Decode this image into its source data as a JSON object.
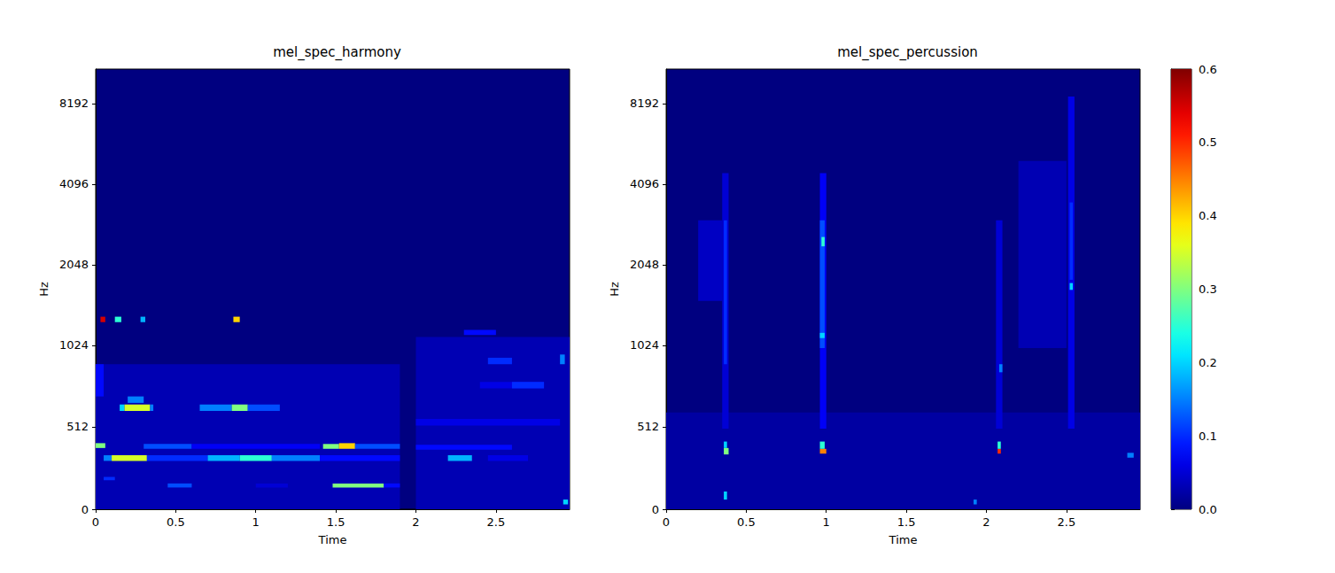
{
  "chart_data": [
    {
      "type": "heatmap",
      "title": "mel_spec_harmony",
      "x_label": "Time",
      "y_label": "Hz",
      "xlim": [
        0,
        2.96
      ],
      "xticks": [
        0,
        0.5,
        1,
        1.5,
        2,
        2.5
      ],
      "ylim": [
        0,
        11025
      ],
      "yticks": [
        0,
        512,
        1024,
        2048,
        4096,
        8192
      ],
      "log": "y",
      "cells": [
        [
          0,
          1.9,
          0,
          900,
          0.03
        ],
        [
          2.0,
          2.96,
          0,
          1100,
          0.03
        ],
        [
          0,
          0.05,
          700,
          900,
          0.08
        ],
        [
          0.05,
          0.1,
          300,
          335,
          0.15
        ],
        [
          0.1,
          0.32,
          300,
          335,
          0.35
        ],
        [
          0.32,
          0.7,
          300,
          335,
          0.1
        ],
        [
          0.7,
          0.9,
          300,
          335,
          0.18
        ],
        [
          0.9,
          1.1,
          300,
          335,
          0.25
        ],
        [
          1.1,
          1.4,
          300,
          335,
          0.15
        ],
        [
          1.4,
          1.9,
          300,
          335,
          0.08
        ],
        [
          2.2,
          2.35,
          300,
          335,
          0.18
        ],
        [
          2.45,
          2.7,
          300,
          335,
          0.06
        ],
        [
          0,
          0.06,
          380,
          410,
          0.3
        ],
        [
          0.3,
          0.6,
          375,
          405,
          0.12
        ],
        [
          0.6,
          1.4,
          375,
          405,
          0.07
        ],
        [
          1.42,
          1.52,
          375,
          405,
          0.3
        ],
        [
          1.52,
          1.62,
          375,
          410,
          0.4
        ],
        [
          1.62,
          1.9,
          375,
          405,
          0.12
        ],
        [
          2.0,
          2.6,
          370,
          400,
          0.08
        ],
        [
          0.05,
          0.12,
          180,
          200,
          0.1
        ],
        [
          0.45,
          0.6,
          135,
          160,
          0.12
        ],
        [
          1.0,
          1.2,
          135,
          160,
          0.05
        ],
        [
          1.48,
          1.8,
          135,
          160,
          0.3
        ],
        [
          1.8,
          1.9,
          135,
          160,
          0.08
        ],
        [
          0.15,
          0.18,
          610,
          650,
          0.2
        ],
        [
          0.18,
          0.34,
          610,
          650,
          0.35
        ],
        [
          0.34,
          0.36,
          610,
          650,
          0.15
        ],
        [
          0.2,
          0.3,
          660,
          700,
          0.15
        ],
        [
          0.65,
          0.85,
          610,
          650,
          0.15
        ],
        [
          0.85,
          0.95,
          610,
          650,
          0.3
        ],
        [
          0.95,
          1.15,
          610,
          650,
          0.12
        ],
        [
          0.03,
          0.06,
          1250,
          1310,
          0.55
        ],
        [
          0.12,
          0.16,
          1250,
          1310,
          0.25
        ],
        [
          0.28,
          0.31,
          1250,
          1310,
          0.18
        ],
        [
          0.86,
          0.9,
          1250,
          1310,
          0.4
        ],
        [
          2.0,
          2.9,
          520,
          560,
          0.06
        ],
        [
          2.4,
          2.8,
          750,
          790,
          0.06
        ],
        [
          2.6,
          2.8,
          750,
          790,
          0.1
        ],
        [
          2.45,
          2.6,
          900,
          940,
          0.1
        ],
        [
          2.3,
          2.5,
          1120,
          1170,
          0.08
        ],
        [
          2.9,
          2.93,
          900,
          960,
          0.15
        ],
        [
          2.92,
          2.95,
          30,
          60,
          0.2
        ]
      ]
    },
    {
      "type": "heatmap",
      "title": "mel_spec_percussion",
      "x_label": "Time",
      "y_label": "Hz",
      "xlim": [
        0,
        2.96
      ],
      "xticks": [
        0,
        0.5,
        1,
        1.5,
        2,
        2.5
      ],
      "ylim": [
        0,
        11025
      ],
      "yticks": [
        0,
        512,
        1024,
        2048,
        4096,
        8192
      ],
      "log": "y",
      "colorbar_range": [
        0,
        0.6
      ],
      "colorbar_ticks": [
        {
          "value": 0,
          "label": "0.0"
        },
        0.1,
        0.2,
        0.3,
        0.4,
        0.5,
        0.6
      ],
      "cells": [
        [
          0,
          2.96,
          0,
          600,
          0.02
        ],
        [
          0.35,
          0.39,
          500,
          4500,
          0.05
        ],
        [
          0.36,
          0.38,
          900,
          3000,
          0.1
        ],
        [
          0.36,
          0.39,
          340,
          380,
          0.3
        ],
        [
          0.36,
          0.38,
          380,
          420,
          0.2
        ],
        [
          0.36,
          0.38,
          60,
          110,
          0.2
        ],
        [
          0.2,
          0.35,
          1500,
          3000,
          0.04
        ],
        [
          0.96,
          1.0,
          500,
          4500,
          0.07
        ],
        [
          0.96,
          0.99,
          1000,
          3000,
          0.12
        ],
        [
          0.97,
          0.99,
          2400,
          2600,
          0.25
        ],
        [
          0.96,
          0.99,
          1090,
          1140,
          0.2
        ],
        [
          0.96,
          1.0,
          345,
          375,
          0.45
        ],
        [
          0.96,
          0.99,
          375,
          420,
          0.25
        ],
        [
          2.06,
          2.1,
          500,
          3000,
          0.05
        ],
        [
          2.07,
          2.09,
          345,
          375,
          0.5
        ],
        [
          2.07,
          2.09,
          375,
          420,
          0.25
        ],
        [
          2.08,
          2.1,
          850,
          900,
          0.15
        ],
        [
          2.2,
          2.5,
          1000,
          5000,
          0.03
        ],
        [
          2.51,
          2.55,
          500,
          8700,
          0.06
        ],
        [
          2.52,
          2.54,
          1800,
          3500,
          0.1
        ],
        [
          2.52,
          2.54,
          1650,
          1750,
          0.2
        ],
        [
          2.88,
          2.92,
          320,
          350,
          0.15
        ],
        [
          1.92,
          1.94,
          30,
          60,
          0.15
        ]
      ]
    }
  ]
}
